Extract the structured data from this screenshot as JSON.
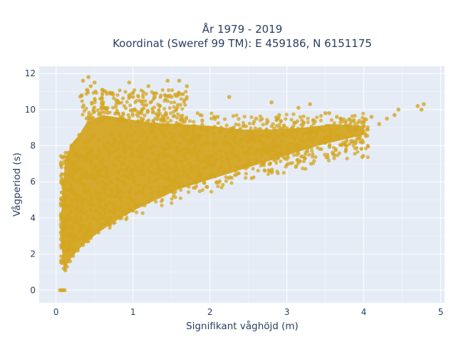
{
  "chart_data": {
    "type": "scatter",
    "title": "År 1979 - 2019",
    "subtitle": "Koordinat (Sweref 99 TM): E 459186, N 6151175",
    "xlabel": "Signifikant våghöjd (m)",
    "ylabel": "Vågperiod (s)",
    "xlim": [
      -0.22,
      5.05
    ],
    "ylim": [
      -0.7,
      12.4
    ],
    "xticks": [
      0,
      1,
      2,
      3,
      4,
      5
    ],
    "yticks": [
      0,
      2,
      4,
      6,
      8,
      10,
      12
    ],
    "grid": true,
    "legend": "none",
    "colors": {
      "marker": "#d4a520",
      "plot_bg": "#e5ecf6",
      "grid": "#ffffff",
      "text": "#2a3f5f"
    },
    "points": [
      [
        0.05,
        0.0
      ],
      [
        0.07,
        0.0
      ],
      [
        0.09,
        0.0
      ],
      [
        0.11,
        0.0
      ],
      [
        0.35,
        11.6
      ],
      [
        0.42,
        11.8
      ],
      [
        0.45,
        11.3
      ],
      [
        0.5,
        11.5
      ],
      [
        0.6,
        11.1
      ],
      [
        0.95,
        11.5
      ],
      [
        1.2,
        11.3
      ],
      [
        1.45,
        11.6
      ],
      [
        1.6,
        11.6
      ],
      [
        1.7,
        11.3
      ],
      [
        0.7,
        10.9
      ],
      [
        1.0,
        10.7
      ],
      [
        1.3,
        10.9
      ],
      [
        1.5,
        10.7
      ],
      [
        2.25,
        10.7
      ],
      [
        2.8,
        10.4
      ],
      [
        3.3,
        10.3
      ],
      [
        3.15,
        10.1
      ],
      [
        3.5,
        9.8
      ],
      [
        3.55,
        9.8
      ],
      [
        3.7,
        9.5
      ],
      [
        4.1,
        9.6
      ],
      [
        4.45,
        10.0
      ],
      [
        4.4,
        9.7
      ],
      [
        4.7,
        10.2
      ],
      [
        4.78,
        10.3
      ],
      [
        4.75,
        10.0
      ],
      [
        4.0,
        9.3
      ],
      [
        3.8,
        9.1
      ],
      [
        3.9,
        8.9
      ],
      [
        4.2,
        9.2
      ],
      [
        4.3,
        9.5
      ],
      [
        4.05,
        8.9
      ],
      [
        3.65,
        9.6
      ],
      [
        2.9,
        9.7
      ],
      [
        2.6,
        9.5
      ],
      [
        2.1,
        9.6
      ],
      [
        1.9,
        9.4
      ],
      [
        0.2,
        8.0
      ],
      [
        0.15,
        7.6
      ],
      [
        0.25,
        8.2
      ],
      [
        0.3,
        8.6
      ],
      [
        0.08,
        1.5
      ],
      [
        0.1,
        1.2
      ],
      [
        0.12,
        1.1
      ],
      [
        0.14,
        1.3
      ],
      [
        0.18,
        1.6
      ],
      [
        0.22,
        1.9
      ],
      [
        0.28,
        2.2
      ],
      [
        0.35,
        2.5
      ],
      [
        0.45,
        2.9
      ],
      [
        0.55,
        3.2
      ],
      [
        0.7,
        3.6
      ],
      [
        0.85,
        4.0
      ],
      [
        1.0,
        4.4
      ],
      [
        1.2,
        4.9
      ],
      [
        1.4,
        5.3
      ],
      [
        1.6,
        5.7
      ],
      [
        1.8,
        6.0
      ],
      [
        2.0,
        6.3
      ]
    ]
  }
}
